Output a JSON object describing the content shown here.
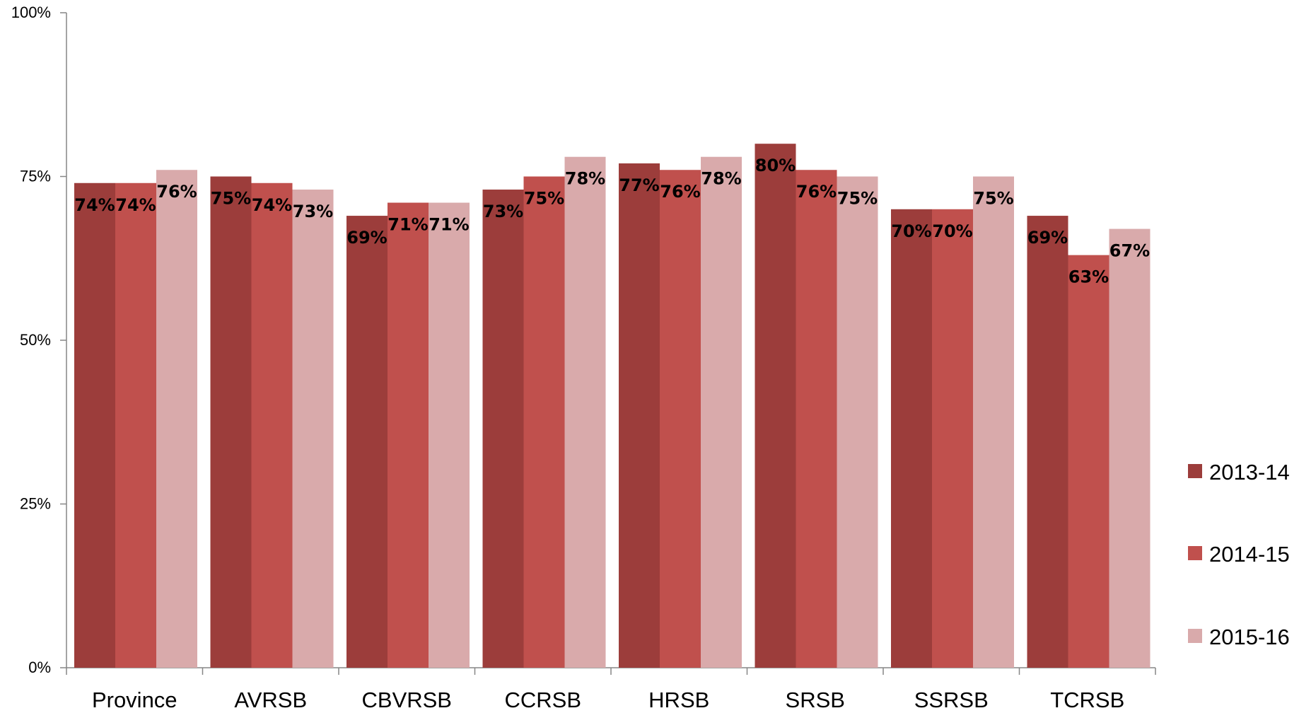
{
  "chart_data": {
    "type": "bar",
    "title": "",
    "xlabel": "",
    "ylabel": "",
    "categories": [
      "Province",
      "AVRSB",
      "CBVRSB",
      "CCRSB",
      "HRSB",
      "SRSB",
      "SSRSB",
      "TCRSB"
    ],
    "series": [
      {
        "name": "2013-14",
        "color": "#9c3d3b",
        "values": [
          74,
          75,
          69,
          73,
          77,
          80,
          70,
          69
        ],
        "labels": [
          "74%",
          "75%",
          "69%",
          "73%",
          "77%",
          "80%",
          "70%",
          "69%"
        ]
      },
      {
        "name": "2014-15",
        "color": "#c0504d",
        "values": [
          74,
          74,
          71,
          75,
          76,
          76,
          70,
          63
        ],
        "labels": [
          "74%",
          "74%",
          "71%",
          "75%",
          "76%",
          "76%",
          "70%",
          "63%"
        ]
      },
      {
        "name": "2015-16",
        "color": "#d9aaab",
        "values": [
          76,
          73,
          71,
          78,
          78,
          75,
          75,
          67
        ],
        "labels": [
          "76%",
          "73%",
          "71%",
          "78%",
          "78%",
          "75%",
          "75%",
          "67%"
        ]
      }
    ],
    "yticks": [
      {
        "value": 0,
        "label": "0%"
      },
      {
        "value": 25,
        "label": "25%"
      },
      {
        "value": 50,
        "label": "50%"
      },
      {
        "value": 75,
        "label": "75%"
      },
      {
        "value": 100,
        "label": "100%"
      }
    ],
    "ylim": [
      0,
      100
    ],
    "grid": false,
    "legend_position": "right"
  }
}
